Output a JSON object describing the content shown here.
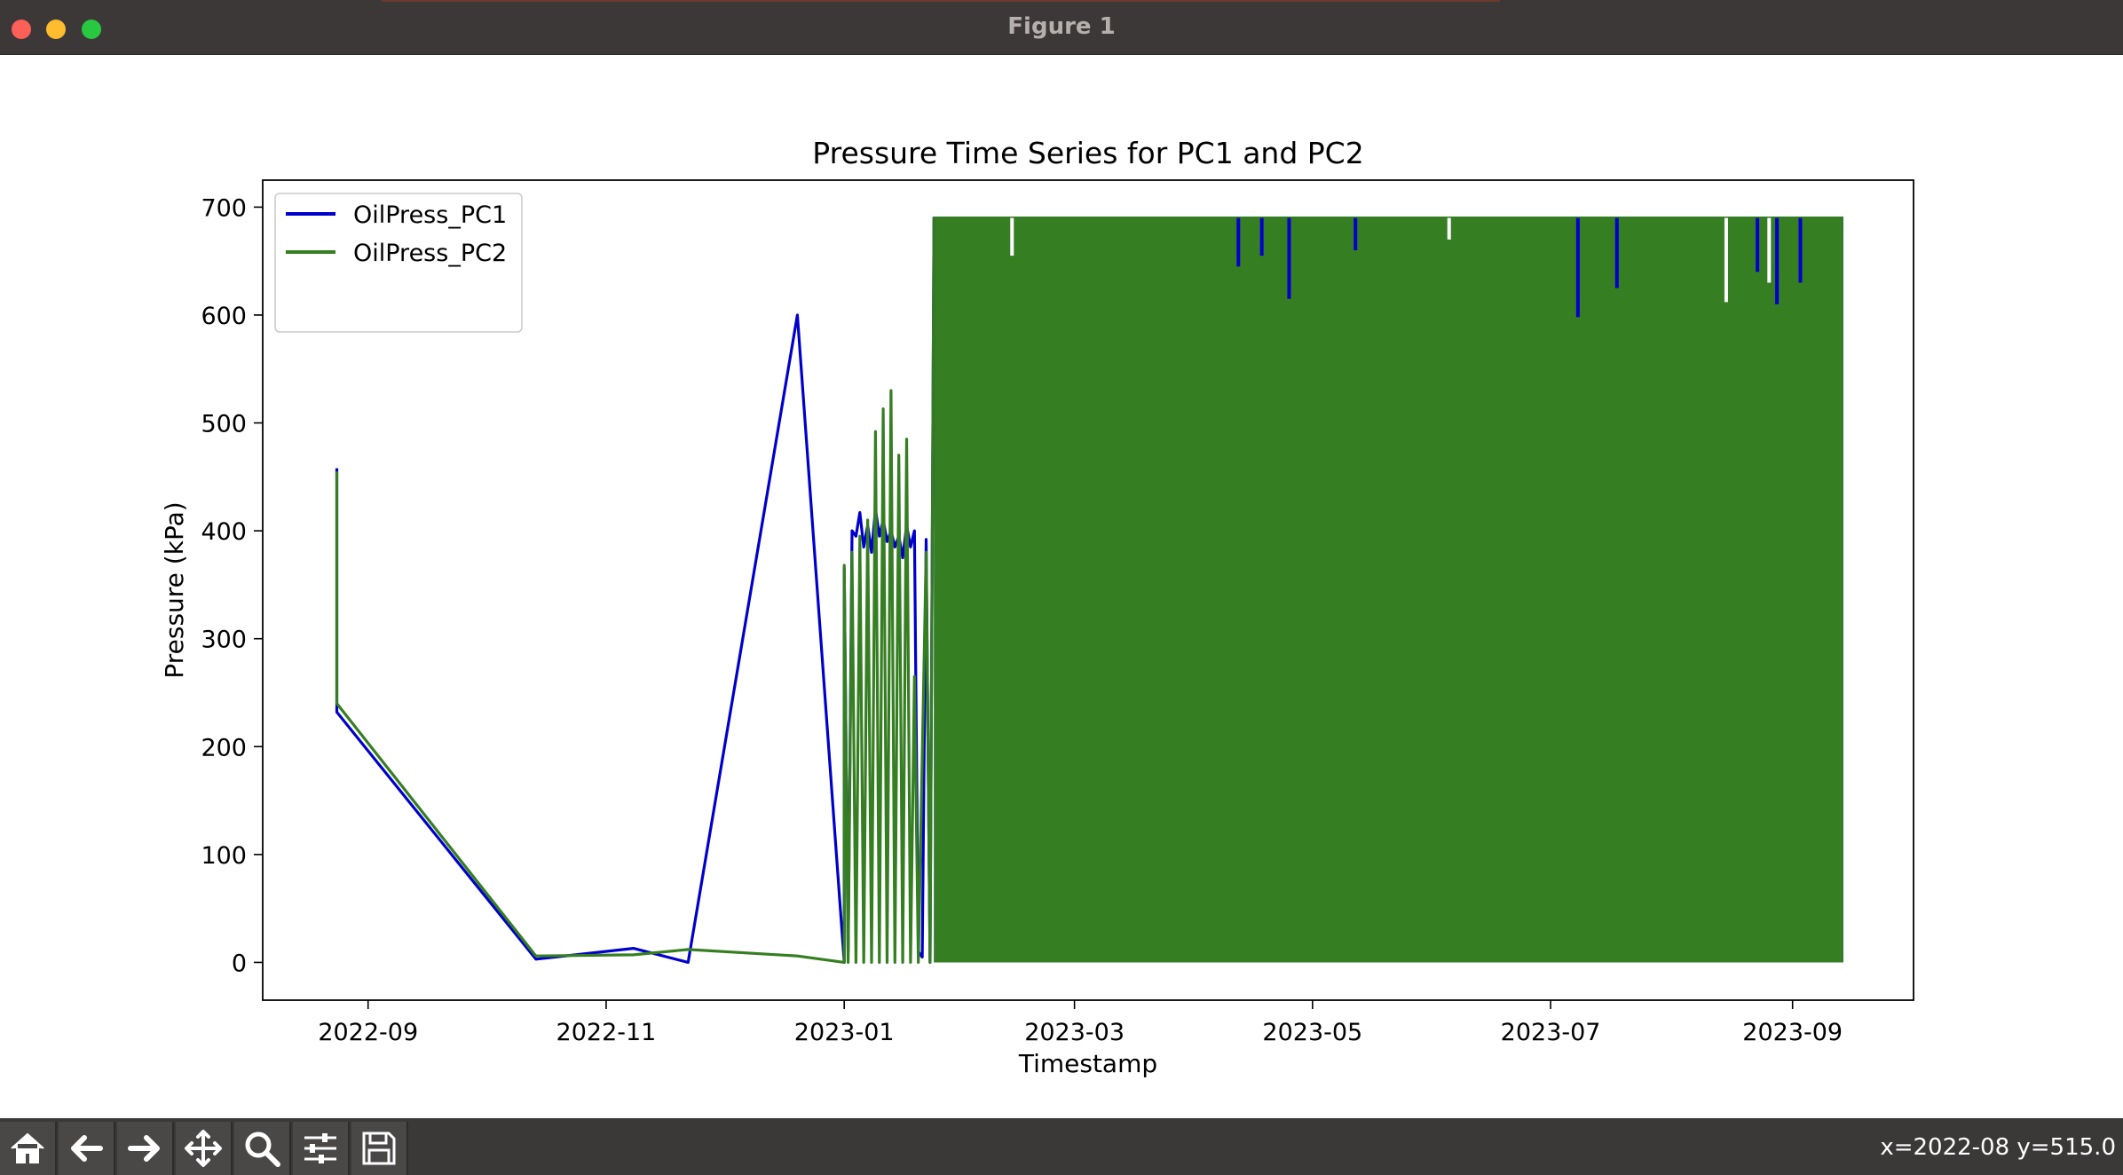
{
  "window": {
    "title": "Figure 1"
  },
  "toolbar": {
    "buttons": [
      {
        "name": "home",
        "icon": "home-icon"
      },
      {
        "name": "back",
        "icon": "arrow-left-icon"
      },
      {
        "name": "forward",
        "icon": "arrow-right-icon"
      },
      {
        "name": "pan",
        "icon": "move-icon"
      },
      {
        "name": "zoom",
        "icon": "zoom-icon"
      },
      {
        "name": "configure",
        "icon": "sliders-icon"
      },
      {
        "name": "save",
        "icon": "save-icon"
      }
    ],
    "coords": "x=2022-08 y=515.0"
  },
  "chart_data": {
    "type": "line",
    "title": "Pressure Time Series for PC1 and PC2",
    "xlabel": "Timestamp",
    "ylabel": "Pressure (kPa)",
    "xlim": [
      "2022-08-05",
      "2023-10-02"
    ],
    "ylim": [
      -35,
      725
    ],
    "xticks": [
      "2022-09",
      "2022-11",
      "2023-01",
      "2023-03",
      "2023-05",
      "2023-07",
      "2023-09"
    ],
    "yticks": [
      0,
      100,
      200,
      300,
      400,
      500,
      600,
      700
    ],
    "legend": "upper-left",
    "grid": false,
    "series": [
      {
        "name": "OilPress_PC1",
        "color": "#0000cc",
        "points": [
          [
            "2022-08-24",
            458
          ],
          [
            "2022-08-24",
            232
          ],
          [
            "2022-10-14",
            3
          ],
          [
            "2022-11-08",
            13
          ],
          [
            "2022-11-22",
            0
          ],
          [
            "2022-12-20",
            600
          ],
          [
            "2023-01-01",
            0
          ],
          [
            "2023-01-01",
            365
          ],
          [
            "2023-01-02",
            10
          ],
          [
            "2023-01-03",
            400
          ],
          [
            "2023-01-04",
            395
          ],
          [
            "2023-01-05",
            417
          ],
          [
            "2023-01-06",
            385
          ],
          [
            "2023-01-07",
            405
          ],
          [
            "2023-01-08",
            380
          ],
          [
            "2023-01-09",
            420
          ],
          [
            "2023-01-10",
            395
          ],
          [
            "2023-01-11",
            410
          ],
          [
            "2023-01-12",
            390
          ],
          [
            "2023-01-13",
            400
          ],
          [
            "2023-01-14",
            385
          ],
          [
            "2023-01-15",
            395
          ],
          [
            "2023-01-16",
            375
          ],
          [
            "2023-01-17",
            405
          ],
          [
            "2023-01-18",
            385
          ],
          [
            "2023-01-19",
            400
          ],
          [
            "2023-01-20",
            10
          ],
          [
            "2023-01-21",
            5
          ],
          [
            "2023-01-22",
            392
          ],
          [
            "2023-01-23",
            0
          ],
          [
            "2023-01-24",
            690
          ],
          [
            "2023-09-14",
            690
          ]
        ],
        "dense_band": {
          "from": "2023-01-24",
          "to": "2023-09-14",
          "low": 0,
          "high": 690
        },
        "dips": [
          [
            "2023-04-12",
            645
          ],
          [
            "2023-04-18",
            655
          ],
          [
            "2023-04-25",
            615
          ],
          [
            "2023-05-12",
            660
          ],
          [
            "2023-07-08",
            598
          ],
          [
            "2023-07-18",
            625
          ],
          [
            "2023-08-23",
            640
          ],
          [
            "2023-08-28",
            610
          ],
          [
            "2023-09-03",
            630
          ]
        ]
      },
      {
        "name": "OilPress_PC2",
        "color": "#367e22",
        "points": [
          [
            "2022-08-24",
            455
          ],
          [
            "2022-08-24",
            240
          ],
          [
            "2022-10-14",
            6
          ],
          [
            "2022-11-08",
            7
          ],
          [
            "2022-11-22",
            12
          ],
          [
            "2022-12-20",
            6
          ],
          [
            "2023-01-01",
            0
          ],
          [
            "2023-01-01",
            368
          ],
          [
            "2023-01-02",
            0
          ],
          [
            "2023-01-03",
            380
          ],
          [
            "2023-01-04",
            0
          ],
          [
            "2023-01-05",
            395
          ],
          [
            "2023-01-06",
            0
          ],
          [
            "2023-01-07",
            410
          ],
          [
            "2023-01-08",
            0
          ],
          [
            "2023-01-09",
            492
          ],
          [
            "2023-01-10",
            0
          ],
          [
            "2023-01-11",
            513
          ],
          [
            "2023-01-12",
            0
          ],
          [
            "2023-01-13",
            530
          ],
          [
            "2023-01-14",
            0
          ],
          [
            "2023-01-15",
            470
          ],
          [
            "2023-01-16",
            0
          ],
          [
            "2023-01-17",
            485
          ],
          [
            "2023-01-18",
            0
          ],
          [
            "2023-01-19",
            265
          ],
          [
            "2023-01-20",
            0
          ],
          [
            "2023-01-22",
            380
          ],
          [
            "2023-01-23",
            0
          ],
          [
            "2023-01-24",
            690
          ],
          [
            "2023-09-14",
            690
          ]
        ],
        "dense_band": {
          "from": "2023-01-24",
          "to": "2023-09-14",
          "low": 0,
          "high": 690
        },
        "gaps": [
          [
            "2023-02-13",
            655
          ],
          [
            "2023-06-05",
            670
          ],
          [
            "2023-08-15",
            612
          ],
          [
            "2023-08-26",
            630
          ]
        ]
      }
    ]
  }
}
